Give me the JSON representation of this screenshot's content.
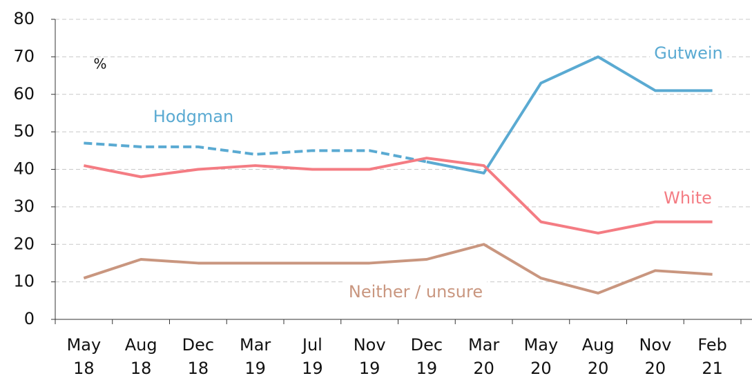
{
  "chart_data": {
    "type": "line",
    "y_label": "%",
    "categories": [
      "May 18",
      "Aug 18",
      "Dec 18",
      "Mar 19",
      "Jul 19",
      "Nov 19",
      "Dec 19",
      "Mar 20",
      "May 20",
      "Aug 20",
      "Nov 20",
      "Feb 21"
    ],
    "series": [
      {
        "name": "Hodgman",
        "color": "#5aaad2",
        "dashed": true,
        "values": [
          47,
          46,
          46,
          44,
          45,
          45,
          42,
          null,
          null,
          null,
          null,
          null
        ]
      },
      {
        "name": "Gutwein",
        "color": "#5aaad2",
        "values": [
          null,
          null,
          null,
          null,
          null,
          null,
          42,
          39,
          63,
          70,
          61,
          61
        ]
      },
      {
        "name": "White",
        "color": "#f47c83",
        "values": [
          41,
          38,
          40,
          41,
          40,
          40,
          43,
          41,
          26,
          23,
          26,
          26
        ]
      },
      {
        "name": "Neither / unsure",
        "color": "#c9967f",
        "values": [
          11,
          16,
          15,
          15,
          15,
          15,
          16,
          20,
          11,
          7,
          13,
          12
        ]
      }
    ],
    "ylim": [
      0,
      80
    ],
    "yticks": [
      0,
      10,
      20,
      30,
      40,
      50,
      60,
      70,
      80
    ],
    "grid": true
  }
}
